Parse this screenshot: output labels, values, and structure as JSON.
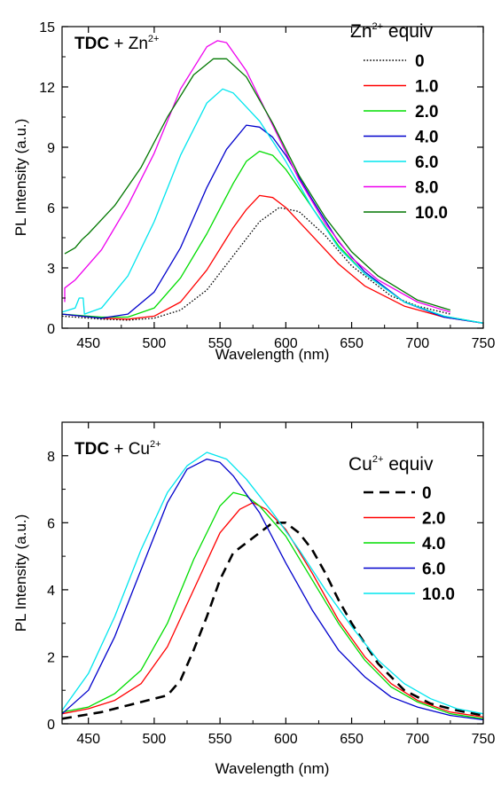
{
  "chart_data": [
    {
      "type": "line",
      "title": "",
      "annotation_bold": "TDC",
      "annotation_rest": " + Zn",
      "annotation_sup": "2+",
      "xlabel": "Wavelength (nm)",
      "ylabel": "PL Intensity (a.u.)",
      "xlim": [
        430,
        750
      ],
      "ylim": [
        0,
        15
      ],
      "xticks": [
        450,
        500,
        550,
        600,
        650,
        700,
        750
      ],
      "yticks": [
        0,
        3,
        6,
        9,
        12,
        15
      ],
      "ytick_labels": [
        "0",
        "3",
        "6",
        "9",
        "12",
        "15"
      ],
      "grid": false,
      "legend_position": "top-right",
      "legend_title_main": "Zn",
      "legend_title_sup": "2+",
      "legend_title_rest": " equiv",
      "series": [
        {
          "name": "0",
          "color": "#000000",
          "dash": "dotted",
          "x": [
            430,
            460,
            480,
            500,
            520,
            540,
            560,
            580,
            595,
            610,
            630,
            650,
            680,
            700,
            725
          ],
          "y": [
            0.6,
            0.45,
            0.4,
            0.5,
            0.9,
            1.9,
            3.6,
            5.3,
            6.0,
            5.8,
            4.6,
            3.1,
            1.6,
            1.1,
            0.7
          ]
        },
        {
          "name": "1.0",
          "color": "#ff0000",
          "dash": "solid",
          "x": [
            430,
            460,
            480,
            500,
            520,
            540,
            560,
            570,
            580,
            590,
            600,
            620,
            640,
            660,
            690,
            720,
            750
          ],
          "y": [
            0.7,
            0.5,
            0.45,
            0.6,
            1.3,
            2.9,
            5.0,
            5.9,
            6.6,
            6.5,
            6.0,
            4.6,
            3.2,
            2.1,
            1.1,
            0.55,
            0.25
          ]
        },
        {
          "name": "2.0",
          "color": "#00dd00",
          "dash": "solid",
          "x": [
            430,
            460,
            480,
            500,
            520,
            540,
            560,
            570,
            580,
            590,
            600,
            620,
            640,
            660,
            690,
            720,
            750
          ],
          "y": [
            0.7,
            0.55,
            0.55,
            1.0,
            2.5,
            4.7,
            7.2,
            8.3,
            8.8,
            8.6,
            7.9,
            6.0,
            4.1,
            2.7,
            1.3,
            0.6,
            0.25
          ]
        },
        {
          "name": "4.0",
          "color": "#0000cc",
          "dash": "solid",
          "x": [
            430,
            460,
            480,
            500,
            520,
            540,
            555,
            570,
            580,
            590,
            600,
            620,
            640,
            660,
            690,
            720,
            750
          ],
          "y": [
            0.7,
            0.5,
            0.7,
            1.8,
            4.0,
            7.0,
            8.9,
            10.1,
            10.0,
            9.5,
            8.6,
            6.4,
            4.3,
            2.8,
            1.3,
            0.55,
            0.25
          ]
        },
        {
          "name": "6.0",
          "color": "#00e5ee",
          "dash": "solid",
          "x": [
            430,
            440,
            443,
            446,
            447,
            460,
            480,
            500,
            520,
            540,
            552,
            560,
            580,
            600,
            620,
            640,
            660,
            690,
            720,
            750
          ],
          "y": [
            0.8,
            1.0,
            1.5,
            1.5,
            0.7,
            1.0,
            2.6,
            5.3,
            8.6,
            11.2,
            11.9,
            11.7,
            10.3,
            8.3,
            6.0,
            4.0,
            2.7,
            1.3,
            0.6,
            0.25
          ]
        },
        {
          "name": "8.0",
          "color": "#ee00ee",
          "dash": "solid",
          "x": [
            432,
            432,
            440,
            460,
            480,
            500,
            520,
            540,
            548,
            555,
            570,
            590,
            610,
            630,
            650,
            670,
            700,
            725
          ],
          "y": [
            1.3,
            2.0,
            2.4,
            3.9,
            6.1,
            8.7,
            11.9,
            14.0,
            14.3,
            14.2,
            12.8,
            10.1,
            7.4,
            5.2,
            3.5,
            2.4,
            1.3,
            0.8
          ]
        },
        {
          "name": "10.0",
          "color": "#007700",
          "dash": "solid",
          "x": [
            432,
            440,
            445,
            450,
            470,
            490,
            510,
            530,
            545,
            555,
            570,
            590,
            610,
            630,
            650,
            670,
            700,
            725
          ],
          "y": [
            3.7,
            4.0,
            4.4,
            4.7,
            6.1,
            8.0,
            10.5,
            12.6,
            13.4,
            13.4,
            12.5,
            10.2,
            7.6,
            5.5,
            3.8,
            2.6,
            1.4,
            0.9
          ]
        }
      ]
    },
    {
      "type": "line",
      "title": "",
      "annotation_bold": "TDC",
      "annotation_rest": " + Cu",
      "annotation_sup": "2+",
      "xlabel": "Wavelength (nm)",
      "ylabel": "PL Intensity (a.u.)",
      "xlim": [
        430,
        750
      ],
      "ylim": [
        0,
        9
      ],
      "xticks": [
        450,
        500,
        550,
        600,
        650,
        700,
        750
      ],
      "yticks": [
        0,
        2,
        4,
        6,
        8
      ],
      "ytick_labels": [
        "0",
        "2",
        "4",
        "6",
        "8"
      ],
      "grid": false,
      "legend_position": "right",
      "legend_title_main": "Cu",
      "legend_title_sup": "2+",
      "legend_title_rest": " equiv",
      "series": [
        {
          "name": "0",
          "color": "#000000",
          "dash": "dashed",
          "x": [
            430,
            460,
            480,
            500,
            510,
            520,
            530,
            540,
            550,
            560,
            570,
            580,
            590,
            600,
            610,
            620,
            630,
            640,
            650,
            670,
            690,
            710,
            730,
            750
          ],
          "y": [
            0.15,
            0.35,
            0.55,
            0.75,
            0.85,
            1.3,
            2.2,
            3.2,
            4.3,
            5.1,
            5.4,
            5.7,
            6.0,
            6.0,
            5.7,
            5.2,
            4.5,
            3.7,
            3.0,
            1.8,
            1.0,
            0.6,
            0.4,
            0.25
          ]
        },
        {
          "name": "2.0",
          "color": "#ff0000",
          "dash": "solid",
          "x": [
            430,
            450,
            470,
            490,
            510,
            530,
            550,
            565,
            575,
            585,
            600,
            620,
            640,
            660,
            680,
            700,
            725,
            750
          ],
          "y": [
            0.3,
            0.45,
            0.7,
            1.2,
            2.3,
            4.0,
            5.7,
            6.4,
            6.6,
            6.4,
            5.8,
            4.5,
            3.1,
            2.0,
            1.2,
            0.7,
            0.35,
            0.2
          ]
        },
        {
          "name": "4.0",
          "color": "#00dd00",
          "dash": "solid",
          "x": [
            430,
            450,
            470,
            490,
            510,
            530,
            550,
            560,
            570,
            580,
            600,
            620,
            640,
            660,
            680,
            700,
            725,
            750
          ],
          "y": [
            0.35,
            0.5,
            0.9,
            1.6,
            3.0,
            4.9,
            6.5,
            6.9,
            6.8,
            6.5,
            5.6,
            4.3,
            3.0,
            1.9,
            1.1,
            0.65,
            0.3,
            0.15
          ]
        },
        {
          "name": "6.0",
          "color": "#0000cc",
          "dash": "solid",
          "x": [
            430,
            450,
            470,
            490,
            510,
            525,
            540,
            550,
            560,
            580,
            600,
            620,
            640,
            660,
            680,
            700,
            725,
            750
          ],
          "y": [
            0.3,
            1.0,
            2.6,
            4.6,
            6.6,
            7.6,
            7.9,
            7.8,
            7.4,
            6.3,
            4.8,
            3.4,
            2.2,
            1.4,
            0.8,
            0.5,
            0.25,
            0.12
          ]
        },
        {
          "name": "10.0",
          "color": "#00e5ee",
          "dash": "solid",
          "x": [
            430,
            450,
            470,
            490,
            510,
            525,
            540,
            555,
            570,
            590,
            610,
            630,
            650,
            670,
            690,
            710,
            730,
            750
          ],
          "y": [
            0.4,
            1.5,
            3.2,
            5.2,
            6.9,
            7.7,
            8.1,
            7.9,
            7.3,
            6.3,
            5.2,
            4.0,
            2.9,
            1.9,
            1.2,
            0.75,
            0.45,
            0.3
          ]
        }
      ]
    }
  ]
}
